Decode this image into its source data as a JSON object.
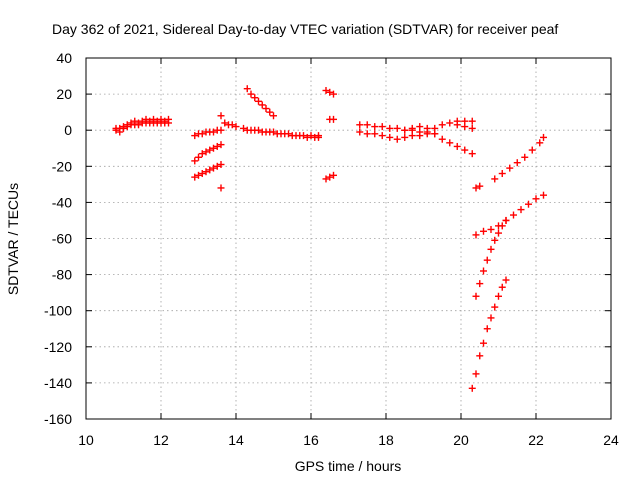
{
  "chart_data": {
    "type": "scatter",
    "title": "Day 362 of 2021, Sidereal Day-to-day VTEC variation (SDTVAR) for receiver peaf",
    "xlabel": "GPS time / hours",
    "ylabel": "SDTVAR / TECUs",
    "xlim": [
      10,
      24
    ],
    "ylim": [
      -160,
      40
    ],
    "x_ticks": [
      "10",
      "12",
      "14",
      "16",
      "18",
      "20",
      "22",
      "24"
    ],
    "y_ticks": [
      "40",
      "20",
      "0",
      "-20",
      "-40",
      "-60",
      "-80",
      "-100",
      "-120",
      "-140",
      "-160"
    ],
    "grid": true,
    "marker": "+",
    "marker_color": "#ff0000",
    "series": [
      {
        "x": [
          10.8,
          10.9,
          11.0,
          11.1,
          11.2,
          11.3,
          11.4,
          11.5,
          11.6,
          11.7,
          11.8,
          11.9,
          12.0,
          12.1,
          12.2
        ],
        "y": [
          1,
          -1,
          2,
          3,
          4,
          5,
          4,
          5,
          6,
          5,
          6,
          5,
          6,
          5,
          6
        ]
      },
      {
        "x": [
          10.8,
          10.9,
          11.0,
          11.1,
          11.2,
          11.3,
          11.4,
          11.5,
          11.6,
          11.7,
          11.8,
          11.9,
          12.0,
          12.1,
          12.2
        ],
        "y": [
          0,
          1,
          1,
          2,
          3,
          3,
          3,
          4,
          4,
          4,
          4,
          4,
          4,
          4,
          4
        ]
      },
      {
        "x": [
          12.9,
          13.0,
          13.1,
          13.2,
          13.3,
          13.4,
          13.5,
          13.6
        ],
        "y": [
          -3,
          -2,
          -2,
          -1,
          -1,
          -1,
          0,
          0
        ]
      },
      {
        "x": [
          12.9,
          13.0,
          13.1,
          13.2,
          13.3,
          13.4,
          13.5,
          13.6
        ],
        "y": [
          -26,
          -25,
          -24,
          -23,
          -22,
          -21,
          -20,
          -19
        ]
      },
      {
        "x": [
          12.9,
          13.0,
          13.1,
          13.2,
          13.3,
          13.4,
          13.5,
          13.6
        ],
        "y": [
          -17,
          -15,
          -13,
          -12,
          -11,
          -10,
          -9,
          -8
        ]
      },
      {
        "x": [
          13.6,
          13.6
        ],
        "y": [
          8,
          -32
        ]
      },
      {
        "x": [
          13.7,
          13.8,
          13.9,
          14.0,
          14.2,
          14.4,
          14.6,
          14.8,
          15.0,
          15.2,
          15.4,
          15.6,
          15.8,
          16.0,
          16.2
        ],
        "y": [
          4,
          3,
          3,
          2,
          1,
          0,
          0,
          -1,
          -1,
          -2,
          -2,
          -3,
          -3,
          -3,
          -3
        ]
      },
      {
        "x": [
          14.3,
          14.4,
          14.5,
          14.6,
          14.7,
          14.8,
          14.9,
          15.0
        ],
        "y": [
          23,
          20,
          18,
          16,
          14,
          12,
          10,
          8
        ]
      },
      {
        "x": [
          14.3,
          14.5,
          14.7,
          14.9,
          15.1,
          15.3,
          15.5,
          15.7,
          15.9,
          16.1,
          16.2
        ],
        "y": [
          0,
          0,
          -1,
          -1,
          -2,
          -2,
          -3,
          -3,
          -4,
          -4,
          -4
        ]
      },
      {
        "x": [
          16.4,
          16.5,
          16.6
        ],
        "y": [
          22,
          21,
          20
        ]
      },
      {
        "x": [
          16.5,
          16.6
        ],
        "y": [
          6,
          6
        ]
      },
      {
        "x": [
          16.4,
          16.5,
          16.6
        ],
        "y": [
          -27,
          -26,
          -25
        ]
      },
      {
        "x": [
          17.3,
          17.5,
          17.7,
          17.9,
          18.1,
          18.3,
          18.5,
          18.7,
          18.9,
          19.1,
          19.3,
          19.5,
          19.7,
          19.9,
          20.1,
          20.3
        ],
        "y": [
          3,
          3,
          2,
          2,
          1,
          1,
          0,
          0,
          -1,
          -1,
          1,
          3,
          4,
          5,
          5,
          5
        ]
      },
      {
        "x": [
          17.3,
          17.5,
          17.7,
          17.9,
          18.1,
          18.3,
          18.5,
          18.7,
          18.9,
          19.1,
          19.3
        ],
        "y": [
          -1,
          -2,
          -2,
          -3,
          -4,
          -5,
          -4,
          -3,
          -3,
          -2,
          -2
        ]
      },
      {
        "x": [
          18.5,
          18.7,
          18.9,
          19.1,
          19.3,
          19.5,
          19.7,
          19.9,
          20.1,
          20.3
        ],
        "y": [
          0,
          1,
          2,
          1,
          -2,
          -5,
          -7,
          -9,
          -11,
          -13
        ]
      },
      {
        "x": [
          19.9,
          20.1,
          20.3
        ],
        "y": [
          3,
          2,
          1
        ]
      },
      {
        "x": [
          20.4,
          20.5
        ],
        "y": [
          -32,
          -31
        ]
      },
      {
        "x": [
          20.9,
          21.1,
          21.3,
          21.5,
          21.7,
          21.9,
          22.1,
          22.2
        ],
        "y": [
          -27,
          -24,
          -21,
          -18,
          -15,
          -11,
          -7,
          -4
        ]
      },
      {
        "x": [
          20.4,
          20.6,
          20.8,
          21.0,
          21.2,
          21.4,
          21.6,
          21.8,
          22.0,
          22.2
        ],
        "y": [
          -58,
          -56,
          -55,
          -53,
          -50,
          -47,
          -44,
          -41,
          -38,
          -36
        ]
      },
      {
        "x": [
          20.4,
          20.5,
          20.6,
          20.7,
          20.8,
          20.9,
          21.0,
          21.1,
          21.2
        ],
        "y": [
          -92,
          -85,
          -78,
          -72,
          -66,
          -61,
          -57,
          -53,
          -50
        ]
      },
      {
        "x": [
          20.3,
          20.4,
          20.5,
          20.6,
          20.7,
          20.8,
          20.9,
          21.0,
          21.1,
          21.2
        ],
        "y": [
          -143,
          -135,
          -125,
          -118,
          -110,
          -104,
          -98,
          -92,
          -87,
          -83
        ]
      }
    ]
  }
}
